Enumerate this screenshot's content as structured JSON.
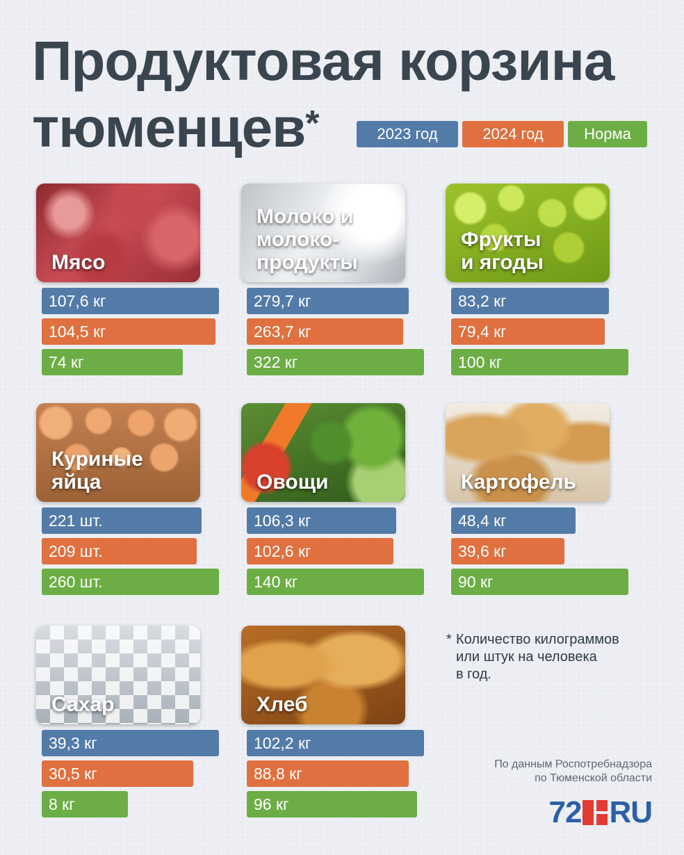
{
  "title": {
    "line1": "Продуктовая корзина",
    "line2": "тюменцев",
    "asterisk": "*"
  },
  "legend": [
    {
      "label": "2023 год",
      "color": "#537ba8"
    },
    {
      "label": "2024 год",
      "color": "#e0703f"
    },
    {
      "label": "Норма",
      "color": "#6cae45"
    }
  ],
  "chart_data": {
    "type": "bar",
    "title": "Продуктовая корзина тюменцев*",
    "series": [
      {
        "name": "2023 год",
        "values": [
          107.6,
          279.7,
          83.2,
          221,
          106.3,
          48.4,
          39.3,
          102.2
        ]
      },
      {
        "name": "2024 год",
        "values": [
          104.5,
          263.7,
          79.4,
          209,
          102.6,
          39.6,
          30.5,
          88.8
        ]
      },
      {
        "name": "Норма",
        "values": [
          74,
          322,
          100,
          260,
          140,
          90,
          8,
          96
        ]
      }
    ],
    "categories": [
      "Мясо",
      "Молоко и молокопродукты",
      "Фрукты и ягоды",
      "Куриные яйца",
      "Овощи",
      "Картофель",
      "Сахар",
      "Хлеб"
    ]
  },
  "cards": [
    {
      "label": "Мясо",
      "texture": "meat",
      "values": [
        "107,6 кг",
        "104,5 кг",
        "74 кг"
      ],
      "raw": [
        107.6,
        104.5,
        74
      ]
    },
    {
      "label": "Молоко и\nмолоко-\nпродукты",
      "texture": "milk",
      "values": [
        "279,7 кг",
        "263,7 кг",
        "322 кг"
      ],
      "raw": [
        279.7,
        263.7,
        322
      ]
    },
    {
      "label": "Фрукты\nи ягоды",
      "texture": "fruit",
      "values": [
        "83,2 кг",
        "79,4 кг",
        "100 кг"
      ],
      "raw": [
        83.2,
        79.4,
        100
      ]
    },
    {
      "label": "Куриные\nяйца",
      "texture": "eggs",
      "values": [
        "221 шт.",
        "209 шт.",
        "260 шт."
      ],
      "raw": [
        221,
        209,
        260
      ]
    },
    {
      "label": "Овощи",
      "texture": "veg",
      "values": [
        "106,3 кг",
        "102,6 кг",
        "140 кг"
      ],
      "raw": [
        106.3,
        102.6,
        140
      ]
    },
    {
      "label": "Картофель",
      "texture": "potato",
      "values": [
        "48,4 кг",
        "39,6 кг",
        "90 кг"
      ],
      "raw": [
        48.4,
        39.6,
        90
      ]
    },
    {
      "label": "Сахар",
      "texture": "sugar",
      "values": [
        "39,3 кг",
        "30,5 кг",
        "8 кг"
      ],
      "raw": [
        39.3,
        30.5,
        8
      ]
    },
    {
      "label": "Хлеб",
      "texture": "bread",
      "values": [
        "102,2 кг",
        "88,8 кг",
        "96 кг"
      ],
      "raw": [
        102.2,
        88.8,
        96
      ]
    }
  ],
  "footnote": {
    "asterisk": "*",
    "text": "Количество килограммов\nили штук на человека\nв год."
  },
  "source": "По данным Роспотребнадзора\nпо Тюменской области",
  "logo": {
    "num": "72",
    "ru": "RU"
  }
}
